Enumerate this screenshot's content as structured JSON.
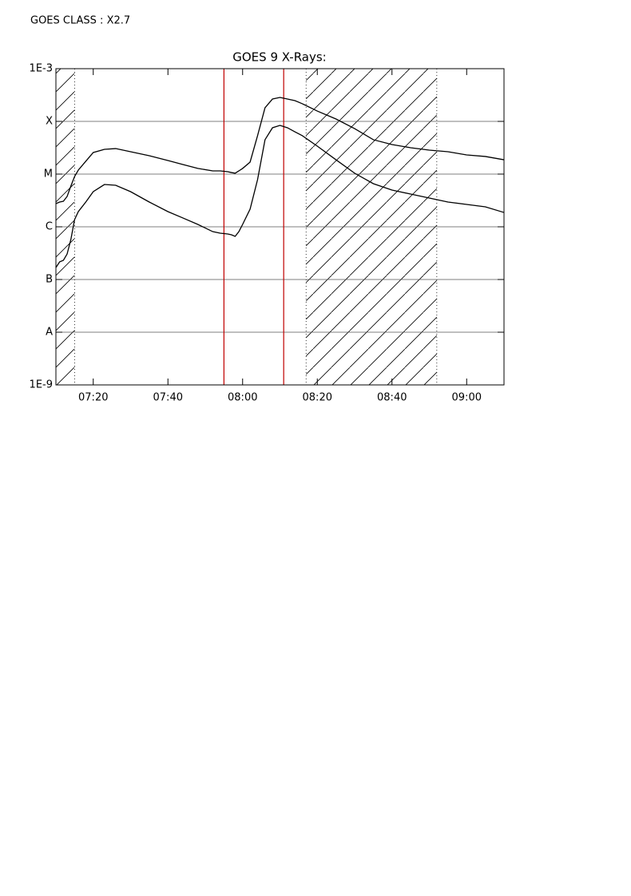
{
  "chart_data": {
    "type": "line",
    "annotation": "GOES CLASS : X2.7",
    "title": "GOES 9 X-Rays:",
    "log_y": true,
    "grid": true,
    "xlim": [
      "07:10",
      "09:10"
    ],
    "xticks": [
      "07:20",
      "07:40",
      "08:00",
      "08:20",
      "08:40",
      "09:00"
    ],
    "ylim": [
      1e-09,
      0.001
    ],
    "yticks": [
      {
        "value": 1e-09,
        "label": "1E-9"
      },
      {
        "value": 1e-08,
        "label": "A"
      },
      {
        "value": 1e-07,
        "label": "B"
      },
      {
        "value": 1e-06,
        "label": "C"
      },
      {
        "value": 1e-05,
        "label": "M"
      },
      {
        "value": 0.0001,
        "label": "X"
      },
      {
        "value": 0.001,
        "label": "1E-3"
      }
    ],
    "x": [
      "07:10",
      "07:11",
      "07:12",
      "07:13",
      "07:14",
      "07:15",
      "07:16",
      "07:18",
      "07:20",
      "07:23",
      "07:26",
      "07:30",
      "07:35",
      "07:40",
      "07:44",
      "07:48",
      "07:52",
      "07:54",
      "07:56",
      "07:57",
      "07:58",
      "07:59",
      "08:00",
      "08:02",
      "08:04",
      "08:06",
      "08:08",
      "08:10",
      "08:12",
      "08:14",
      "08:16",
      "08:20",
      "08:25",
      "08:30",
      "08:35",
      "08:40",
      "08:45",
      "08:50",
      "08:55",
      "09:00",
      "09:05",
      "09:10"
    ],
    "series": [
      {
        "color": "#000000",
        "values": [
          2.75e-06,
          2.95e-06,
          3.05e-06,
          3.77e-06,
          5.93e-06,
          9e-06,
          1.19e-05,
          1.75e-05,
          2.57e-05,
          2.95e-05,
          3.05e-05,
          2.66e-05,
          2.23e-05,
          1.81e-05,
          1.52e-05,
          1.28e-05,
          1.15e-05,
          1.15e-05,
          1.11e-05,
          1.07e-05,
          1.04e-05,
          1.15e-05,
          1.28e-05,
          1.69e-05,
          5.34e-05,
          0.000181,
          0.000266,
          0.000285,
          0.000266,
          0.000248,
          0.000216,
          0.000157,
          0.000111,
          7.3e-05,
          4.49e-05,
          3.64e-05,
          3.16e-05,
          2.85e-05,
          2.66e-05,
          2.31e-05,
          2.16e-05,
          1.87e-05
        ]
      },
      {
        "color": "#000000",
        "values": [
          1.69e-07,
          2.16e-07,
          2.31e-07,
          3.05e-07,
          5.73e-07,
          1.37e-06,
          1.94e-06,
          2.95e-06,
          4.64e-06,
          6.35e-06,
          6.14e-06,
          4.64e-06,
          2.95e-06,
          1.94e-06,
          1.47e-06,
          1.11e-06,
          8.1e-07,
          7.57e-07,
          7.31e-07,
          7.05e-07,
          6.58e-07,
          8.1e-07,
          1.11e-06,
          2.16e-06,
          7.83e-06,
          4.49e-05,
          7.57e-05,
          8.4e-05,
          7.57e-05,
          6.35e-05,
          5.34e-05,
          3.39e-05,
          1.87e-05,
          1.04e-05,
          6.58e-06,
          4.98e-06,
          4.18e-06,
          3.51e-06,
          2.95e-06,
          2.66e-06,
          2.39e-06,
          1.87e-06
        ]
      }
    ],
    "event_lines": {
      "color": "#c00000",
      "x": [
        "07:55",
        "08:11"
      ]
    },
    "hatched_intervals": [
      [
        "07:10",
        "07:15"
      ],
      [
        "08:17",
        "08:52"
      ]
    ]
  }
}
